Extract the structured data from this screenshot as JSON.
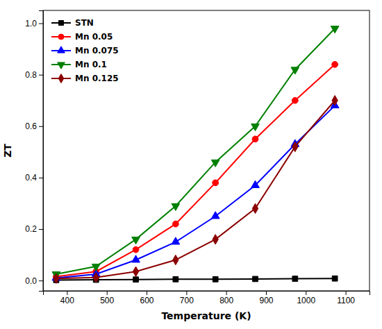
{
  "chart_data": {
    "type": "line",
    "xlabel": "Temperature (K)",
    "ylabel": "ZT",
    "x": [
      373,
      473,
      573,
      673,
      773,
      873,
      973,
      1073
    ],
    "xlim": [
      340,
      1160
    ],
    "xticks": [
      400,
      500,
      600,
      700,
      800,
      900,
      1000,
      1100
    ],
    "ylim": [
      -0.04,
      1.05
    ],
    "yticks": [
      {
        "value": 0,
        "label": "0.0"
      },
      {
        "value": 0.2,
        "label": "0.2"
      },
      {
        "value": 0.4,
        "label": "0.4"
      },
      {
        "value": 0.6,
        "label": "0.6"
      },
      {
        "value": 0.8,
        "label": "0.8"
      },
      {
        "value": 1,
        "label": "1.0"
      }
    ],
    "grid": false,
    "legend": "upper left",
    "series": [
      {
        "name": "STN",
        "color": "#000000",
        "marker": "square",
        "line_style": "solid",
        "values": [
          0.002,
          0.003,
          0.004,
          0.005,
          0.005,
          0.006,
          0.007,
          0.008
        ]
      },
      {
        "name": "Mn 0.05",
        "color": "#ff0000",
        "marker": "circle",
        "line_style": "solid",
        "values": [
          0.015,
          0.035,
          0.12,
          0.22,
          0.38,
          0.55,
          0.7,
          0.84
        ]
      },
      {
        "name": "Mn 0.075",
        "color": "#0000ff",
        "marker": "triangle-up",
        "line_style": "solid",
        "values": [
          0.01,
          0.025,
          0.08,
          0.15,
          0.25,
          0.37,
          0.53,
          0.68
        ]
      },
      {
        "name": "Mn 0.1",
        "color": "#008000",
        "marker": "triangle-down",
        "line_style": "solid",
        "values": [
          0.025,
          0.055,
          0.16,
          0.29,
          0.46,
          0.6,
          0.82,
          0.98
        ]
      },
      {
        "name": "Mn 0.125",
        "color": "#8B0000",
        "marker": "diamond",
        "line_style": "solid",
        "values": [
          0.008,
          0.012,
          0.035,
          0.08,
          0.16,
          0.28,
          0.52,
          0.7
        ]
      }
    ]
  }
}
